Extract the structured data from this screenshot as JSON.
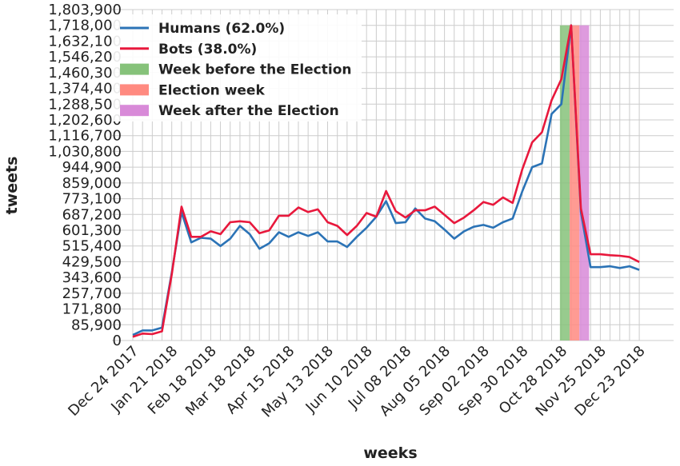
{
  "chart_data": {
    "type": "line",
    "xlabel": "weeks",
    "ylabel": "tweets",
    "ylim": [
      0,
      1803900
    ],
    "yticks": [
      0,
      85900,
      171800,
      257700,
      343600,
      429500,
      515400,
      601300,
      687200,
      773100,
      859000,
      944900,
      1030800,
      1116700,
      1202600,
      1288500,
      1374400,
      1460300,
      1546200,
      1632100,
      1718000,
      1803900
    ],
    "ytick_labels": [
      "0",
      "85,900",
      "171,800",
      "257,700",
      "343,600",
      "429,500",
      "515,400",
      "601,300",
      "687,200",
      "773,100",
      "859,000",
      "944,900",
      "1,030,800",
      "1,116,700",
      "1,202,600",
      "1,288,500",
      "1,374,400",
      "1,460,300",
      "1,546,200",
      "1,632,100",
      "1,718,000",
      "1,803,900"
    ],
    "x_tick_labels": [
      {
        "index": 0,
        "label": "Dec 24 2017"
      },
      {
        "index": 4,
        "label": "Jan 21 2018"
      },
      {
        "index": 8,
        "label": "Feb 18 2018"
      },
      {
        "index": 12,
        "label": "Mar 18 2018"
      },
      {
        "index": 16,
        "label": "Apr 15 2018"
      },
      {
        "index": 20,
        "label": "May 13 2018"
      },
      {
        "index": 24,
        "label": "Jun 10 2018"
      },
      {
        "index": 28,
        "label": "Jul 08 2018"
      },
      {
        "index": 32,
        "label": "Aug 05 2018"
      },
      {
        "index": 36,
        "label": "Sep 02 2018"
      },
      {
        "index": 40,
        "label": "Sep 30 2018"
      },
      {
        "index": 44,
        "label": "Oct 28 2018"
      },
      {
        "index": 48,
        "label": "Nov 25 2018"
      },
      {
        "index": 52,
        "label": "Dec 23 2018"
      }
    ],
    "grid": true,
    "legend_position": "top-left",
    "series": [
      {
        "name": "Humans (62.0%)",
        "color": "#2b73b6",
        "values": [
          30000,
          55000,
          55000,
          70000,
          370000,
          700000,
          535000,
          560000,
          555000,
          515000,
          555000,
          625000,
          580000,
          500000,
          530000,
          590000,
          565000,
          590000,
          570000,
          590000,
          540000,
          540000,
          510000,
          565000,
          615000,
          675000,
          760000,
          640000,
          645000,
          720000,
          665000,
          650000,
          605000,
          555000,
          595000,
          620000,
          630000,
          615000,
          645000,
          665000,
          815000,
          945000,
          965000,
          1235000,
          1288500,
          1718000,
          700000,
          400000,
          400000,
          405000,
          395000,
          405000,
          385000
        ]
      },
      {
        "name": "Bots (38.0%)",
        "color": "#e8183c",
        "values": [
          20000,
          38000,
          35000,
          50000,
          360000,
          730000,
          565000,
          565000,
          595000,
          580000,
          645000,
          650000,
          645000,
          585000,
          600000,
          680000,
          680000,
          725000,
          700000,
          715000,
          645000,
          625000,
          575000,
          625000,
          695000,
          675000,
          815000,
          705000,
          670000,
          710000,
          710000,
          730000,
          685000,
          640000,
          670000,
          710000,
          755000,
          740000,
          780000,
          750000,
          935000,
          1080000,
          1135000,
          1310000,
          1425000,
          1718000,
          720000,
          470000,
          470000,
          465000,
          462000,
          455000,
          428000
        ]
      }
    ],
    "spans": [
      {
        "name": "Week before the Election",
        "color": "#86c27a",
        "from": 43.85,
        "to": 44.85
      },
      {
        "name": "Election week",
        "color": "#ff8a80",
        "from": 44.85,
        "to": 45.85
      },
      {
        "name": "Week after the Election",
        "color": "#d88ad8",
        "from": 45.85,
        "to": 46.85
      }
    ]
  }
}
